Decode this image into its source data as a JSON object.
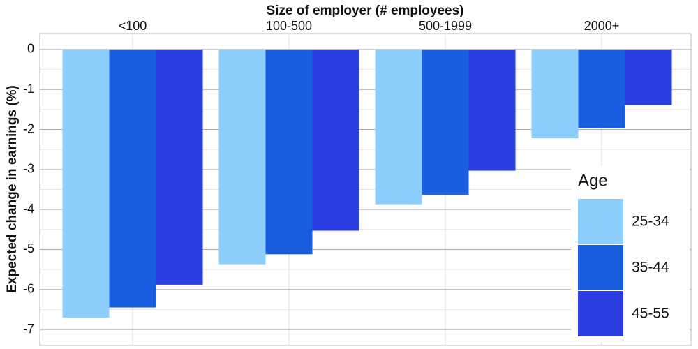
{
  "chart_data": {
    "type": "bar",
    "x_label": "Size of employer (# employees)",
    "y_label": "Expected change in earnings (%)",
    "categories": [
      "<100",
      "100-500",
      "500-1999",
      "2000+"
    ],
    "legend_title": "Age",
    "series": [
      {
        "name": "25-34",
        "color": "#8ccfff",
        "values": [
          -6.7,
          -5.37,
          -3.87,
          -2.22
        ]
      },
      {
        "name": "35-44",
        "color": "#1a5ee0",
        "values": [
          -6.45,
          -5.12,
          -3.63,
          -1.97
        ]
      },
      {
        "name": "45-55",
        "color": "#2b3fe0",
        "values": [
          -5.88,
          -4.53,
          -3.03,
          -1.39
        ]
      }
    ],
    "ylim": [
      -7.4,
      0.4
    ],
    "yticks": [
      -7,
      -6,
      -5,
      -4,
      -3,
      -2,
      -1,
      0
    ],
    "minor_yticks": [
      -6.5,
      -5.5,
      -4.5,
      -3.5,
      -2.5,
      -1.5,
      -0.5
    ],
    "grid": true
  }
}
